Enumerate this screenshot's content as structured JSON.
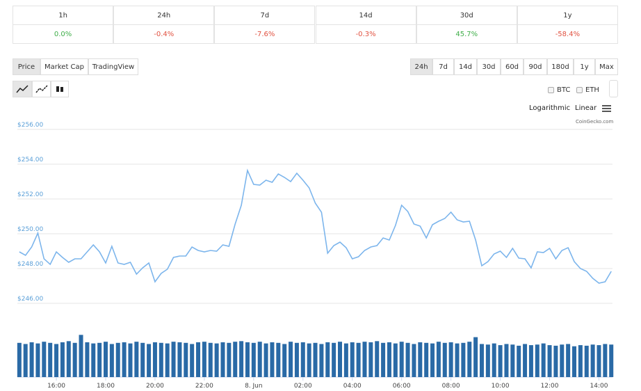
{
  "performance": {
    "headers": [
      "1h",
      "24h",
      "7d",
      "14d",
      "30d",
      "1y"
    ],
    "values": [
      "0.0%",
      "-0.4%",
      "-7.6%",
      "-0.3%",
      "45.7%",
      "-58.4%"
    ]
  },
  "tabs": [
    "Price",
    "Market Cap",
    "TradingView"
  ],
  "ranges": [
    "24h",
    "7d",
    "14d",
    "30d",
    "60d",
    "90d",
    "180d",
    "1y",
    "Max"
  ],
  "compare": [
    "BTC",
    "ETH"
  ],
  "scales": [
    "Logarithmic",
    "Linear"
  ],
  "credit": "CoinGecko.com",
  "chart_data": {
    "type": "line",
    "x": [
      14.5,
      14.75,
      15,
      15.25,
      15.5,
      15.75,
      16,
      16.25,
      16.5,
      16.75,
      17,
      17.25,
      17.5,
      17.75,
      18,
      18.25,
      18.5,
      18.75,
      19,
      19.25,
      19.5,
      19.75,
      20,
      20.25,
      20.5,
      20.75,
      21,
      21.25,
      21.5,
      21.75,
      22,
      22.25,
      22.5,
      22.75,
      23,
      23.25,
      23.5,
      23.75,
      24,
      24.25,
      24.5,
      24.75,
      25,
      25.25,
      25.5,
      25.75,
      26,
      26.25,
      26.5,
      26.75,
      27,
      27.25,
      27.5,
      27.75,
      28,
      28.25,
      28.5,
      28.75,
      29,
      29.25,
      29.5,
      29.75,
      30,
      30.25,
      30.5,
      30.75,
      31,
      31.25,
      31.5,
      31.75,
      32,
      32.25,
      32.5,
      32.75,
      33,
      33.25,
      33.5,
      33.75,
      34,
      34.25,
      34.5,
      34.75,
      35,
      35.25,
      35.5,
      35.75,
      36,
      36.25,
      36.5,
      36.75,
      37,
      37.25,
      37.5,
      37.75,
      38,
      38.25,
      38.5
    ],
    "series": [
      {
        "color": "#7cb5ec",
        "values": [
          248.96,
          248.76,
          249.24,
          250.04,
          248.56,
          248.24,
          248.96,
          248.64,
          248.36,
          248.56,
          248.56,
          248.96,
          249.36,
          248.96,
          248.32,
          249.28,
          248.32,
          248.24,
          248.36,
          247.68,
          248.04,
          248.32,
          247.24,
          247.72,
          247.96,
          248.64,
          248.72,
          248.72,
          249.24,
          249.04,
          248.96,
          249.04,
          249.0,
          249.36,
          249.28,
          250.56,
          251.64,
          253.64,
          252.84,
          252.8,
          253.08,
          252.96,
          253.44,
          253.24,
          253.0,
          253.48,
          253.08,
          252.64,
          251.76,
          251.24,
          248.88,
          249.32,
          249.52,
          249.2,
          248.56,
          248.68,
          249.04,
          249.24,
          249.32,
          249.76,
          249.64,
          250.48,
          251.64,
          251.28,
          250.56,
          250.44,
          249.76,
          250.52,
          250.72,
          250.88,
          251.24,
          250.8,
          250.68,
          250.72,
          249.64,
          248.16,
          248.4,
          248.84,
          249.0,
          248.64,
          249.16,
          248.6,
          248.56,
          248.04,
          248.96,
          248.92,
          249.16,
          248.56,
          249.04,
          249.2,
          248.4,
          248.0,
          247.84,
          247.44,
          247.16,
          247.24,
          247.84
        ]
      },
      {
        "type": "bar",
        "axis": "y2",
        "color": "#2a6aa6",
        "values": [
          60,
          58,
          61,
          59,
          62,
          60,
          58,
          61,
          63,
          60,
          74,
          61,
          59,
          60,
          62,
          58,
          60,
          61,
          59,
          62,
          60,
          58,
          61,
          60,
          59,
          62,
          61,
          60,
          58,
          61,
          62,
          60,
          59,
          61,
          60,
          62,
          63,
          61,
          60,
          62,
          59,
          61,
          60,
          58,
          62,
          60,
          61,
          59,
          60,
          58,
          61,
          60,
          62,
          59,
          61,
          60,
          62,
          61,
          63,
          60,
          61,
          59,
          62,
          60,
          58,
          61,
          60,
          59,
          62,
          60,
          61,
          59,
          60,
          62,
          70,
          58,
          57,
          59,
          56,
          58,
          57,
          55,
          58,
          56,
          57,
          59,
          56,
          55,
          57,
          58,
          54,
          56,
          55,
          57,
          56,
          58,
          57
        ]
      }
    ],
    "xlim": [
      14.42,
      38.55
    ],
    "xticks": [
      {
        "value": 16,
        "label": "16:00"
      },
      {
        "value": 18,
        "label": "18:00"
      },
      {
        "value": 20,
        "label": "20:00"
      },
      {
        "value": 22,
        "label": "22:00"
      },
      {
        "value": 24,
        "label": "8. Jun"
      },
      {
        "value": 26,
        "label": "02:00"
      },
      {
        "value": 28,
        "label": "04:00"
      },
      {
        "value": 30,
        "label": "06:00"
      },
      {
        "value": 32,
        "label": "08:00"
      },
      {
        "value": 34,
        "label": "10:00"
      },
      {
        "value": 36,
        "label": "12:00"
      },
      {
        "value": 38,
        "label": "14:00"
      }
    ],
    "ylim": [
      246,
      256
    ],
    "yticks": [
      {
        "value": 246,
        "label": "$246.00"
      },
      {
        "value": 248,
        "label": "$248.00"
      },
      {
        "value": 250,
        "label": "$250.00"
      },
      {
        "value": 252,
        "label": "$252.00"
      },
      {
        "value": 254,
        "label": "$254.00"
      },
      {
        "value": 256,
        "label": "$256.00"
      }
    ],
    "y2lim": [
      0,
      100
    ],
    "grid": true
  }
}
